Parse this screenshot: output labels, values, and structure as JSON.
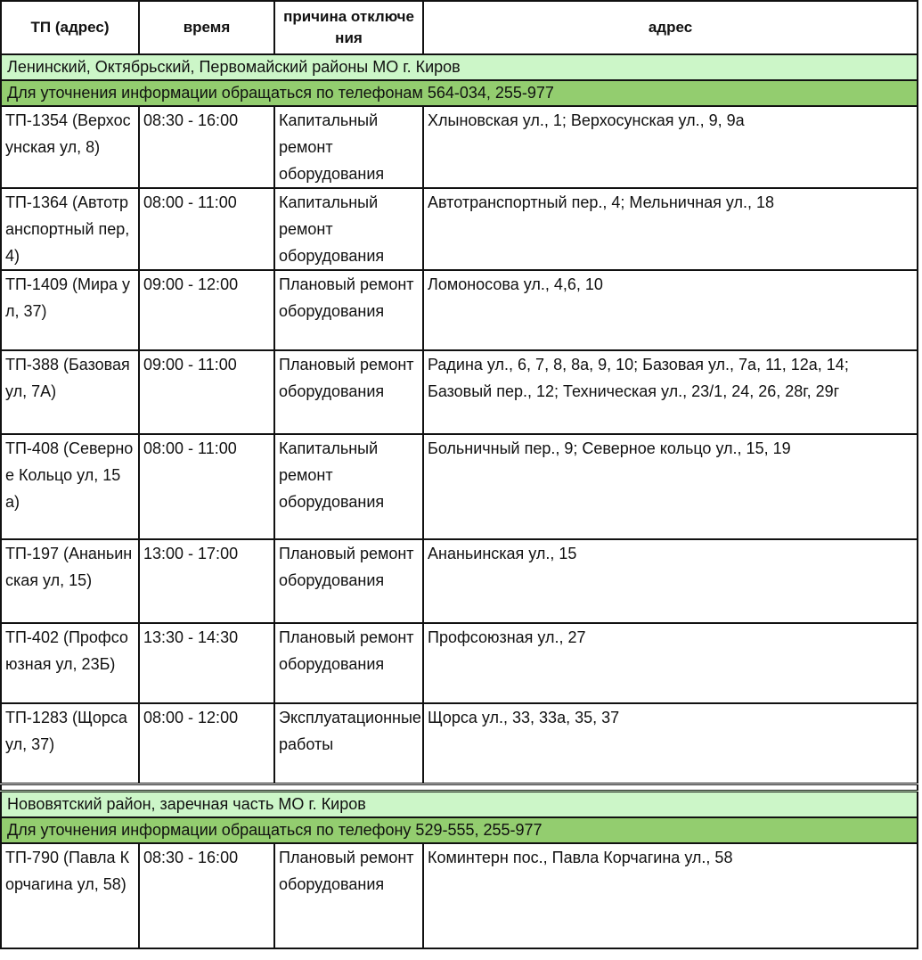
{
  "headers": [
    "ТП (адрес)",
    "время",
    "причина отключения",
    "адрес"
  ],
  "sections": [
    {
      "title": "Ленинский, Октябрьский, Первомайский районы МО г. Киров",
      "phone": "Для уточнения информации обращаться по телефонам 564-034, 255-977",
      "rows": [
        {
          "tp": "ТП-1354 (Верхосунская ул, 8)",
          "time": "08:30 - 16:00",
          "reason": "Капитальный ремонт оборудования",
          "address": "Хлыновская ул., 1; Верхосунская ул., 9, 9а"
        },
        {
          "tp": "ТП-1364 (Автотранспортный пер, 4)",
          "time": "08:00 - 11:00",
          "reason": "Капитальный ремонт оборудования",
          "address": "Автотранспортный пер., 4; Мельничная ул., 18"
        },
        {
          "tp": "ТП-1409 (Мира ул, 37)",
          "time": "09:00 - 12:00",
          "reason": "Плановый ремонт оборудования",
          "address": "Ломоносова ул., 4,6, 10"
        },
        {
          "tp": "ТП-388 (Базовая ул, 7А)",
          "time": "09:00 - 11:00",
          "reason": "Плановый ремонт оборудования",
          "address": "Радина ул., 6, 7, 8, 8а, 9, 10; Базовая ул., 7а, 11, 12а, 14; Базовый пер., 12; Техническая ул., 23/1, 24, 26, 28г, 29г"
        },
        {
          "tp": "ТП-408 (Северное Кольцо ул, 15а)",
          "time": "08:00 - 11:00",
          "reason": "Капитальный ремонт оборудования",
          "address": "Больничный пер., 9; Северное кольцо ул., 15, 19"
        },
        {
          "tp": "ТП-197 (Ананьинская ул, 15)",
          "time": "13:00 - 17:00",
          "reason": "Плановый ремонт оборудования",
          "address": "Ананьинская ул., 15"
        },
        {
          "tp": "ТП-402 (Профсоюзная ул, 23Б)",
          "time": "13:30 - 14:30",
          "reason": "Плановый ремонт оборудования",
          "address": "Профсоюзная ул., 27"
        },
        {
          "tp": "ТП-1283 (Щорса ул, 37)",
          "time": "08:00 - 12:00",
          "reason": "Эксплуатационные работы",
          "address": "Щорса ул., 33, 33а, 35, 37"
        }
      ]
    },
    {
      "title": "Нововятский район, заречная часть МО г. Киров",
      "phone": "Для уточнения информации обращаться по телефону 529-555, 255-977",
      "rows": [
        {
          "tp": "ТП-790 (Павла Корчагина ул, 58)",
          "time": "08:30 - 16:00",
          "reason": "Плановый ремонт оборудования",
          "address": "Коминтерн пос., Павла Корчагина ул., 58"
        }
      ]
    }
  ]
}
